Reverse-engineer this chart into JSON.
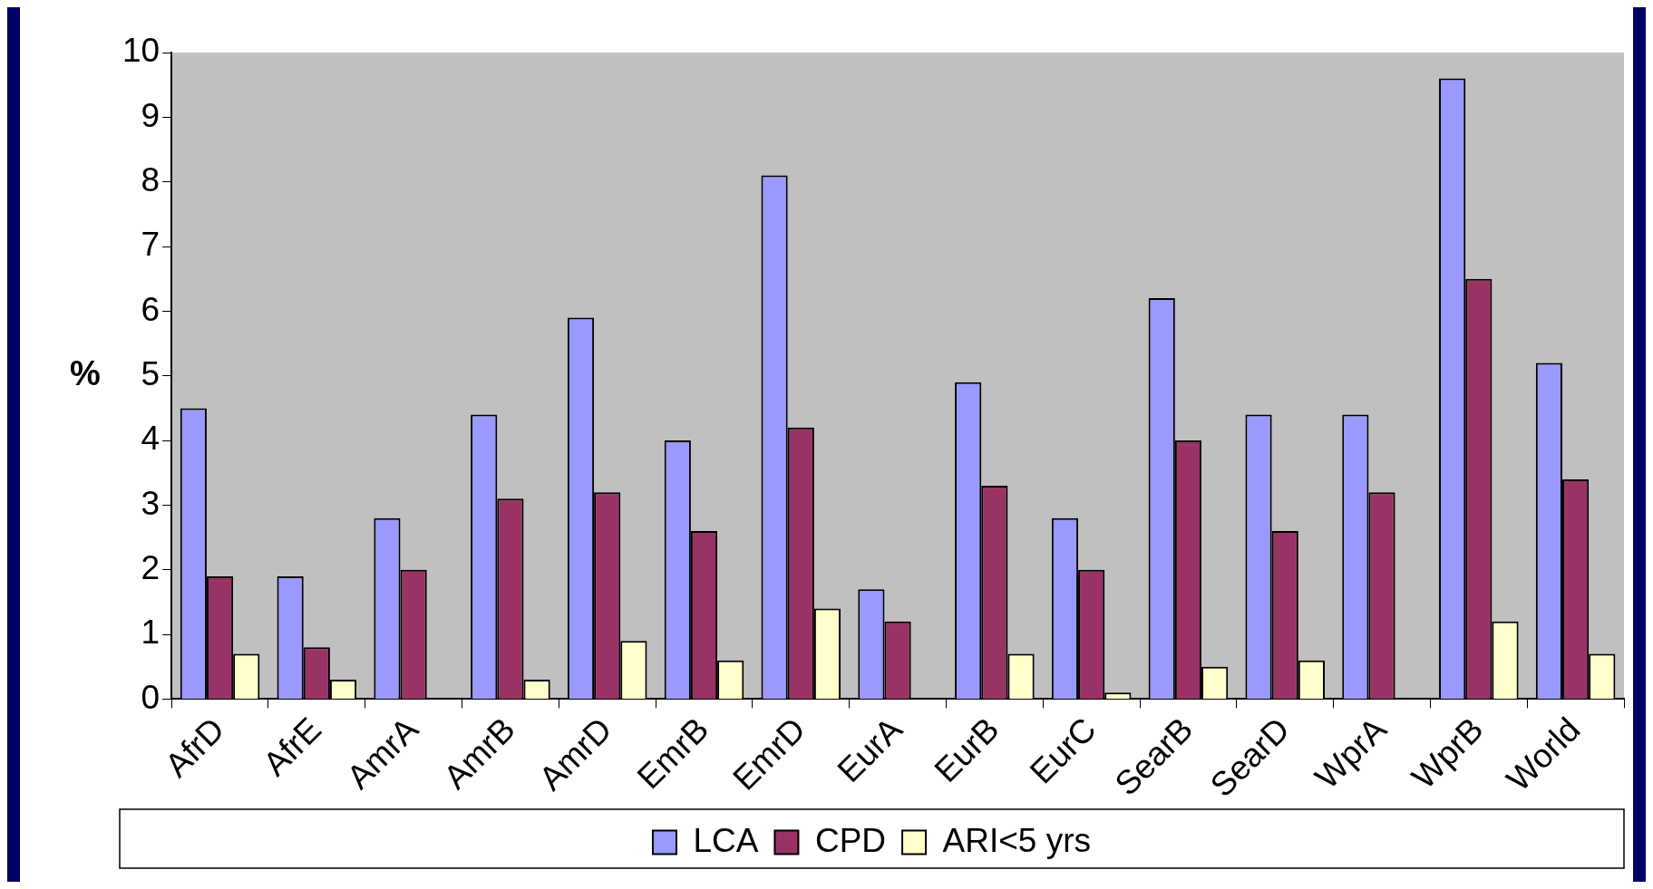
{
  "chart_data": {
    "type": "bar",
    "ylabel": "%",
    "categories": [
      "AfrD",
      "AfrE",
      "AmrA",
      "AmrB",
      "AmrD",
      "EmrB",
      "EmrD",
      "EurA",
      "EurB",
      "EurC",
      "SearB",
      "SearD",
      "WprA",
      "WprB",
      "World"
    ],
    "series": [
      {
        "name": "LCA",
        "color": "#9999ff",
        "values": [
          4.5,
          1.9,
          2.8,
          4.4,
          5.9,
          4.0,
          8.1,
          1.7,
          4.9,
          2.8,
          6.2,
          4.4,
          4.4,
          9.6,
          5.2
        ]
      },
      {
        "name": "CPD",
        "color": "#993366",
        "values": [
          1.9,
          0.8,
          2.0,
          3.1,
          3.2,
          2.6,
          4.2,
          1.2,
          3.3,
          2.0,
          4.0,
          2.6,
          3.2,
          6.5,
          3.4
        ]
      },
      {
        "name": "ARI<5 yrs",
        "color": "#ffffcc",
        "values": [
          0.7,
          0.3,
          null,
          0.3,
          0.9,
          0.6,
          1.4,
          null,
          0.7,
          0.1,
          0.5,
          0.6,
          null,
          1.2,
          0.7
        ]
      }
    ],
    "ylim": [
      0,
      10
    ],
    "yticks": [
      0,
      1,
      2,
      3,
      4,
      5,
      6,
      7,
      8,
      9,
      10
    ],
    "grid": false,
    "legend": "bottom"
  }
}
